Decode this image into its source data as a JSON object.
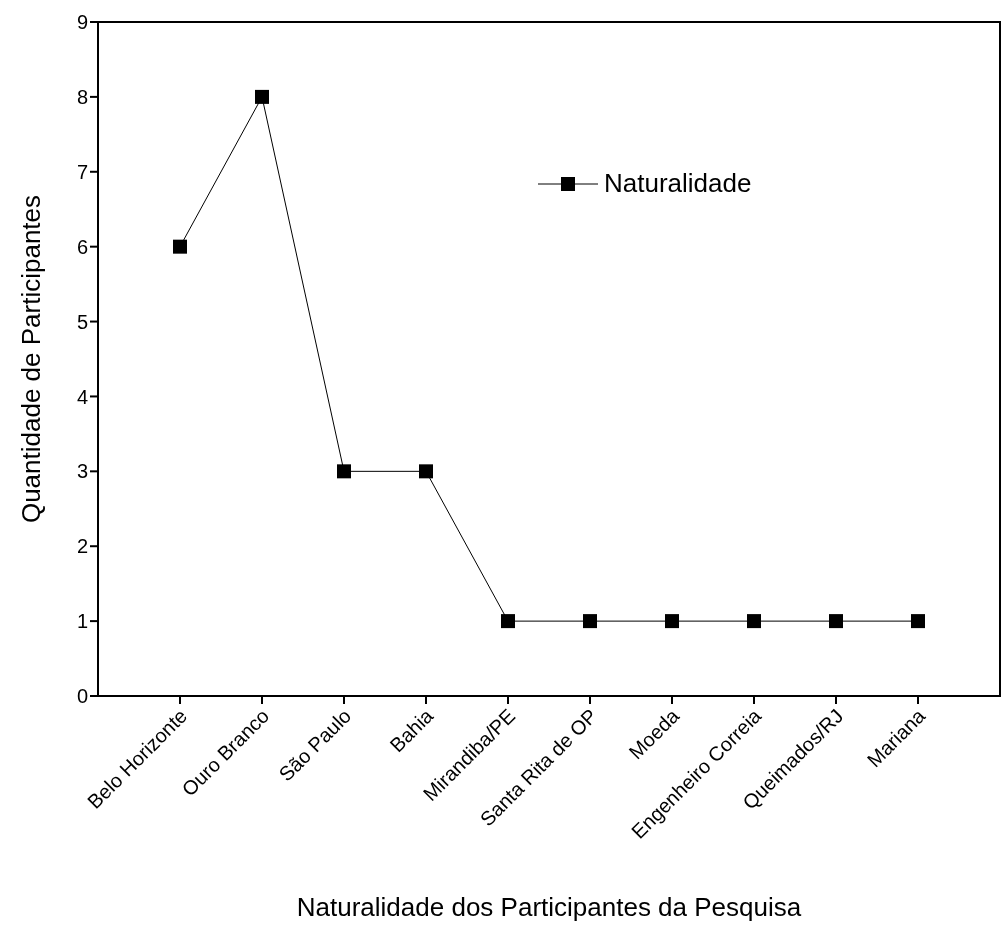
{
  "chart_data": {
    "type": "line",
    "xlabel": "Naturalidade dos Participantes da Pesquisa",
    "ylabel": "Quantidade de Participantes",
    "categories": [
      "Belo Horizonte",
      "Ouro Branco",
      "São Paulo",
      "Bahia",
      "Mirandiba/PE",
      "Santa Rita de OP",
      "Moeda",
      "Engenheiro Correia",
      "Queimados/RJ",
      "Mariana"
    ],
    "series": [
      {
        "name": "Naturalidade",
        "color": "#000000",
        "values": [
          6,
          8,
          3,
          3,
          1,
          1,
          1,
          1,
          1,
          1
        ]
      }
    ],
    "ylim": [
      0,
      9
    ],
    "yticks": [
      0,
      1,
      2,
      3,
      4,
      5,
      6,
      7,
      8,
      9
    ],
    "grid": false,
    "legend": "top right",
    "marker": "square",
    "line_style": "solid"
  }
}
